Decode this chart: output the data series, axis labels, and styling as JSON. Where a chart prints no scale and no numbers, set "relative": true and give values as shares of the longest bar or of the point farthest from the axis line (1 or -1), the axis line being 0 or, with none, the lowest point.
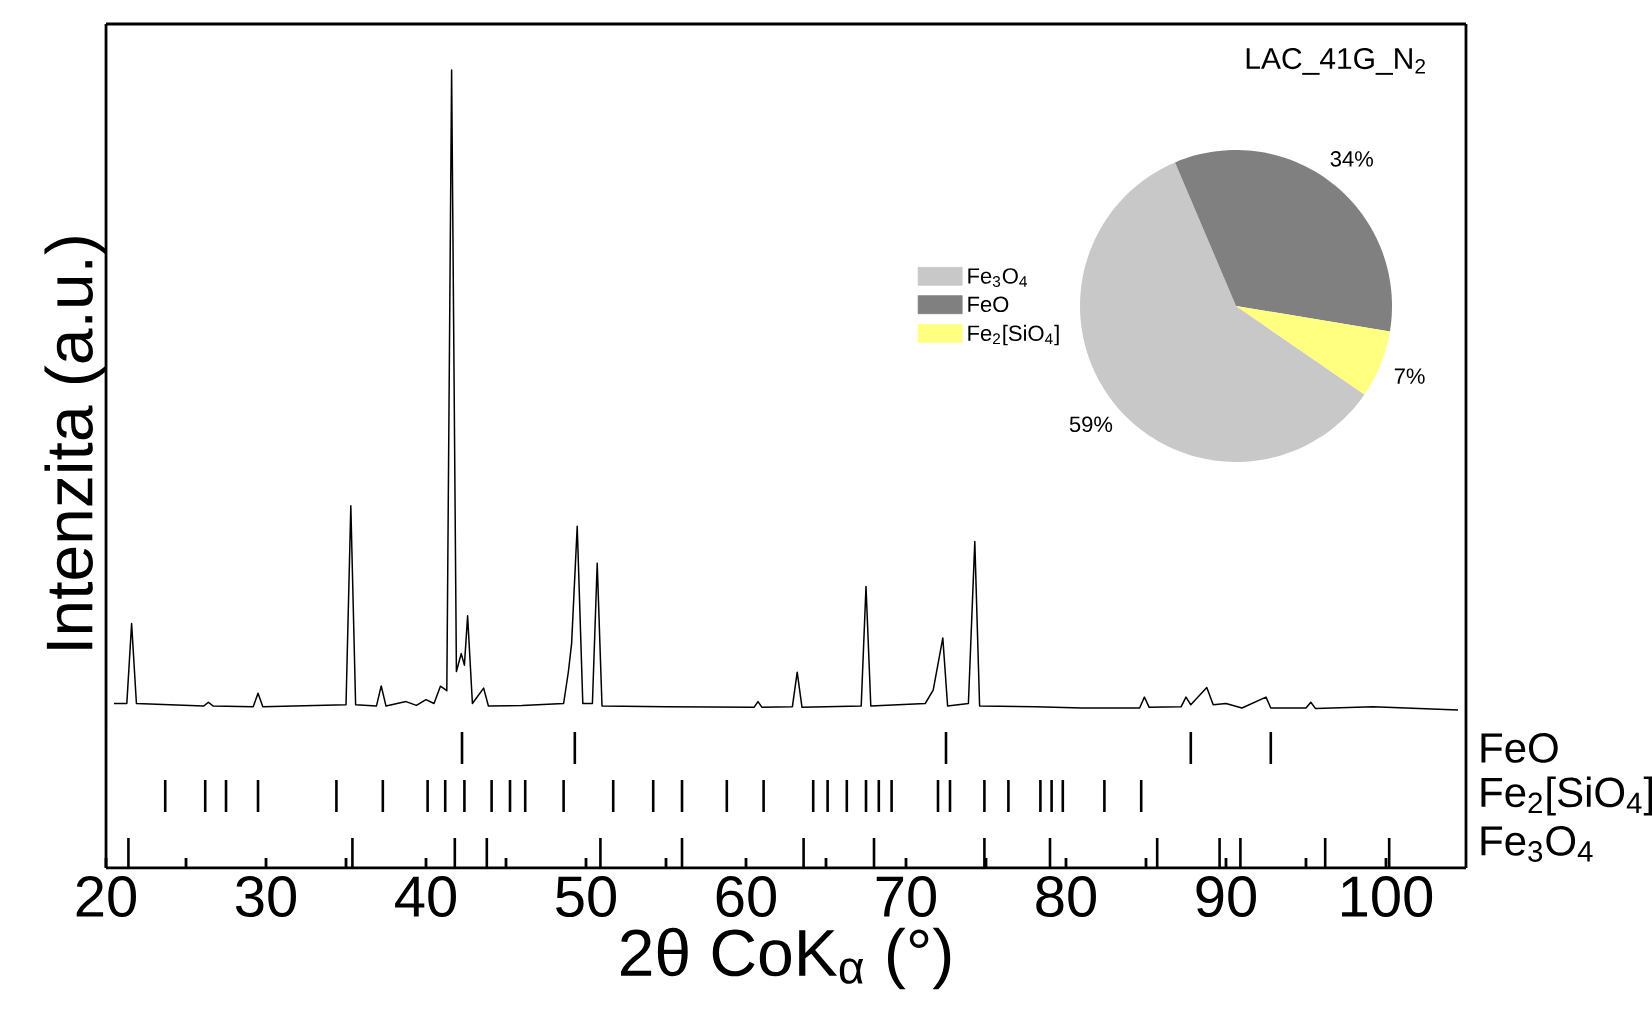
{
  "chart_data": [
    {
      "type": "line",
      "relative": true,
      "xlim": [
        20,
        105
      ],
      "tick_labels": false,
      "xticks": [
        20,
        30,
        40,
        50,
        60,
        70,
        80,
        90,
        100
      ],
      "ylabel": "Intenzita (a.u.)",
      "series": [
        {
          "color": "#000000",
          "x": [
            20.5,
            21.3,
            21.6,
            21.9,
            26.1,
            26.4,
            26.7,
            29.2,
            29.5,
            29.8,
            35.0,
            35.3,
            35.6,
            36.9,
            37.2,
            37.5,
            38.75,
            39.4,
            40.0,
            40.5,
            40.9,
            41.3,
            41.6,
            41.9,
            42.2,
            42.4,
            42.6,
            42.9,
            43.6,
            43.9,
            46.0,
            48.6,
            48.9,
            49.1,
            49.45,
            49.8,
            50.4,
            50.7,
            51.0,
            55.0,
            60.5,
            60.75,
            61.0,
            62.9,
            63.2,
            63.5,
            67.2,
            67.5,
            67.8,
            71.2,
            71.7,
            72.3,
            72.6,
            73.9,
            74.3,
            74.6,
            78.1,
            81.0,
            84.6,
            84.9,
            85.2,
            87.2,
            87.5,
            87.8,
            88.8,
            89.2,
            90.0,
            91.0,
            92.5,
            92.8,
            95.0,
            95.3,
            95.6,
            99.2,
            104.5
          ],
          "values": [
            0.01,
            0.01,
            0.135,
            0.01,
            0.006,
            0.012,
            0.006,
            0.005,
            0.026,
            0.005,
            0.008,
            0.319,
            0.008,
            0.006,
            0.0375,
            0.006,
            0.013,
            0.007,
            0.016,
            0.01,
            0.037,
            0.03,
            1.0,
            0.06,
            0.088,
            0.07,
            0.147,
            0.01,
            0.034,
            0.006,
            0.007,
            0.01,
            0.06,
            0.104,
            0.287,
            0.01,
            0.01,
            0.229,
            0.006,
            0.005,
            0.004,
            0.013,
            0.004,
            0.005,
            0.059,
            0.004,
            0.006,
            0.193,
            0.006,
            0.01,
            0.031,
            0.1125,
            0.006,
            0.01,
            0.263,
            0.006,
            0.005,
            0.003,
            0.003,
            0.02,
            0.004,
            0.005,
            0.02,
            0.008,
            0.035,
            0.008,
            0.01,
            0.003,
            0.02,
            0.003,
            0.003,
            0.012,
            0.002,
            0.005,
            0.0
          ]
        }
      ]
    },
    {
      "type": "bar",
      "relative": true,
      "xlim": [
        20,
        105
      ],
      "tick_labels": false,
      "xticks": [
        20,
        30,
        40,
        50,
        60,
        70,
        80,
        90,
        100
      ],
      "series": [
        {
          "name": "FeO",
          "color": "#000000",
          "x": [
            42.25,
            49.3,
            72.5,
            87.8,
            92.8
          ],
          "values": [
            1,
            1,
            1,
            1,
            1
          ]
        }
      ]
    },
    {
      "type": "bar",
      "relative": true,
      "xlim": [
        20,
        105
      ],
      "tick_labels": false,
      "xticks": [
        20,
        30,
        40,
        50,
        60,
        70,
        80,
        90,
        100
      ],
      "series": [
        {
          "name": "Fe$_{2}$[SiO$_{4}$]",
          "color": "#000000",
          "x": [
            23.7,
            26.2,
            27.5,
            29.5,
            34.4,
            37.3,
            40.1,
            41.2,
            42.4,
            44.1,
            45.25,
            46.2,
            48.6,
            51.7,
            54.2,
            56.0,
            58.8,
            61.1,
            64.2,
            65.1,
            66.3,
            67.5,
            68.3,
            69.1,
            72.0,
            72.75,
            74.9,
            76.4,
            78.4,
            79.1,
            79.8,
            82.4,
            84.7
          ],
          "values": [
            1,
            1,
            1,
            1,
            1,
            1,
            1,
            1,
            1,
            1,
            1,
            1,
            1,
            1,
            1,
            1,
            1,
            1,
            1,
            1,
            1,
            1,
            1,
            1,
            1,
            1,
            1,
            1,
            1,
            1,
            1,
            1,
            1
          ]
        }
      ]
    },
    {
      "type": "bar",
      "relative": true,
      "xlim": [
        20,
        105
      ],
      "xlabel": "2θ CoK$_{α}$ (°)",
      "xticks": [
        20,
        {
          "value": 25,
          "label": null
        },
        30,
        {
          "value": 35,
          "label": null
        },
        40,
        {
          "value": 45,
          "label": null
        },
        50,
        {
          "value": 55,
          "label": null
        },
        60,
        {
          "value": 65,
          "label": null
        },
        70,
        {
          "value": 75,
          "label": null
        },
        80,
        {
          "value": 85,
          "label": null
        },
        90,
        {
          "value": 95,
          "label": null
        },
        100
      ],
      "series": [
        {
          "name": "Fe$_{3}$O$_{4}$",
          "color": "#000000",
          "x": [
            21.4,
            35.4,
            41.8,
            43.8,
            50.9,
            56.0,
            63.6,
            68.0,
            74.9,
            79.0,
            85.7,
            89.6,
            90.9,
            96.2,
            100.2
          ],
          "values": [
            1,
            1,
            1,
            1,
            1,
            1,
            1,
            1,
            1,
            1,
            1,
            1,
            1,
            1,
            1
          ]
        }
      ]
    },
    {
      "type": "pie",
      "title": "LAC_41G_N$_{2}$",
      "legend": "left",
      "categories": [
        "Fe$_{3}$O$_{4}$",
        "FeO",
        "Fe$_{2}$[SiO$_{4}$]"
      ],
      "values": [
        59,
        34,
        7
      ],
      "colors": [
        "#c8c8c8",
        "#808080",
        "#ffff80"
      ],
      "value_labels": [
        "59%",
        "34%",
        "7%"
      ]
    }
  ]
}
